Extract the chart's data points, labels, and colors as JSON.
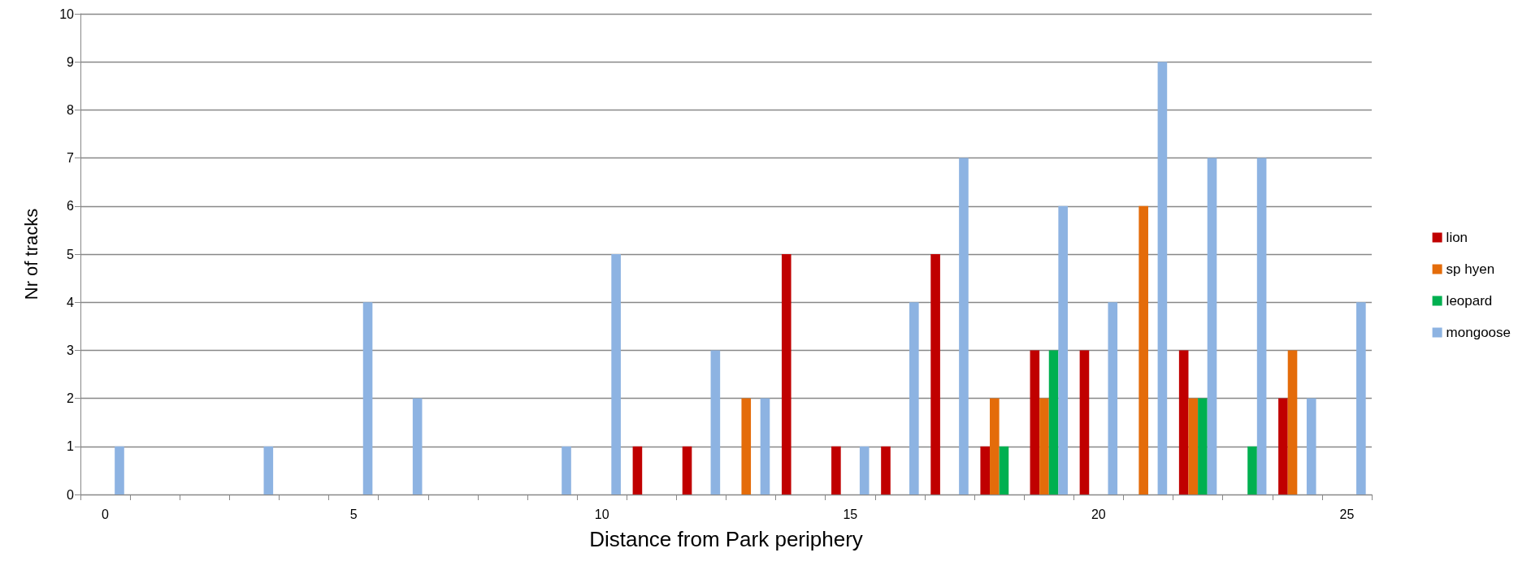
{
  "chart_data": {
    "type": "bar",
    "xlabel": "Distance from Park periphery",
    "ylabel": "Nr of tracks",
    "categories": [
      "0",
      null,
      null,
      null,
      null,
      "5",
      null,
      null,
      null,
      null,
      "10",
      null,
      null,
      null,
      null,
      "15",
      null,
      null,
      null,
      null,
      "20",
      null,
      null,
      null,
      null,
      "25"
    ],
    "series": [
      {
        "name": "lion",
        "color": "#c00000",
        "values": [
          0,
          0,
          0,
          0,
          0,
          0,
          0,
          0,
          0,
          0,
          0,
          1,
          1,
          0,
          5,
          1,
          1,
          5,
          1,
          3,
          3,
          0,
          3,
          0,
          2,
          0
        ]
      },
      {
        "name": "sp hyen",
        "color": "#e46c0a",
        "values": [
          0,
          0,
          0,
          0,
          0,
          0,
          0,
          0,
          0,
          0,
          0,
          0,
          0,
          2,
          0,
          0,
          0,
          0,
          2,
          2,
          0,
          6,
          2,
          0,
          3,
          0
        ]
      },
      {
        "name": "leopard",
        "color": "#00b050",
        "values": [
          0,
          0,
          0,
          0,
          0,
          0,
          0,
          0,
          0,
          0,
          0,
          0,
          0,
          0,
          0,
          0,
          0,
          0,
          1,
          3,
          0,
          0,
          2,
          1,
          0,
          0
        ]
      },
      {
        "name": "mongoose",
        "color": "#8db3e2",
        "values": [
          1,
          0,
          0,
          1,
          0,
          4,
          2,
          0,
          0,
          1,
          5,
          0,
          3,
          2,
          0,
          1,
          4,
          7,
          0,
          6,
          4,
          9,
          7,
          7,
          2,
          4
        ]
      }
    ],
    "ylim": [
      0,
      10
    ],
    "yticks": [
      0,
      1,
      2,
      3,
      4,
      5,
      6,
      7,
      8,
      9,
      10
    ],
    "grid": "y",
    "legend": "right"
  }
}
